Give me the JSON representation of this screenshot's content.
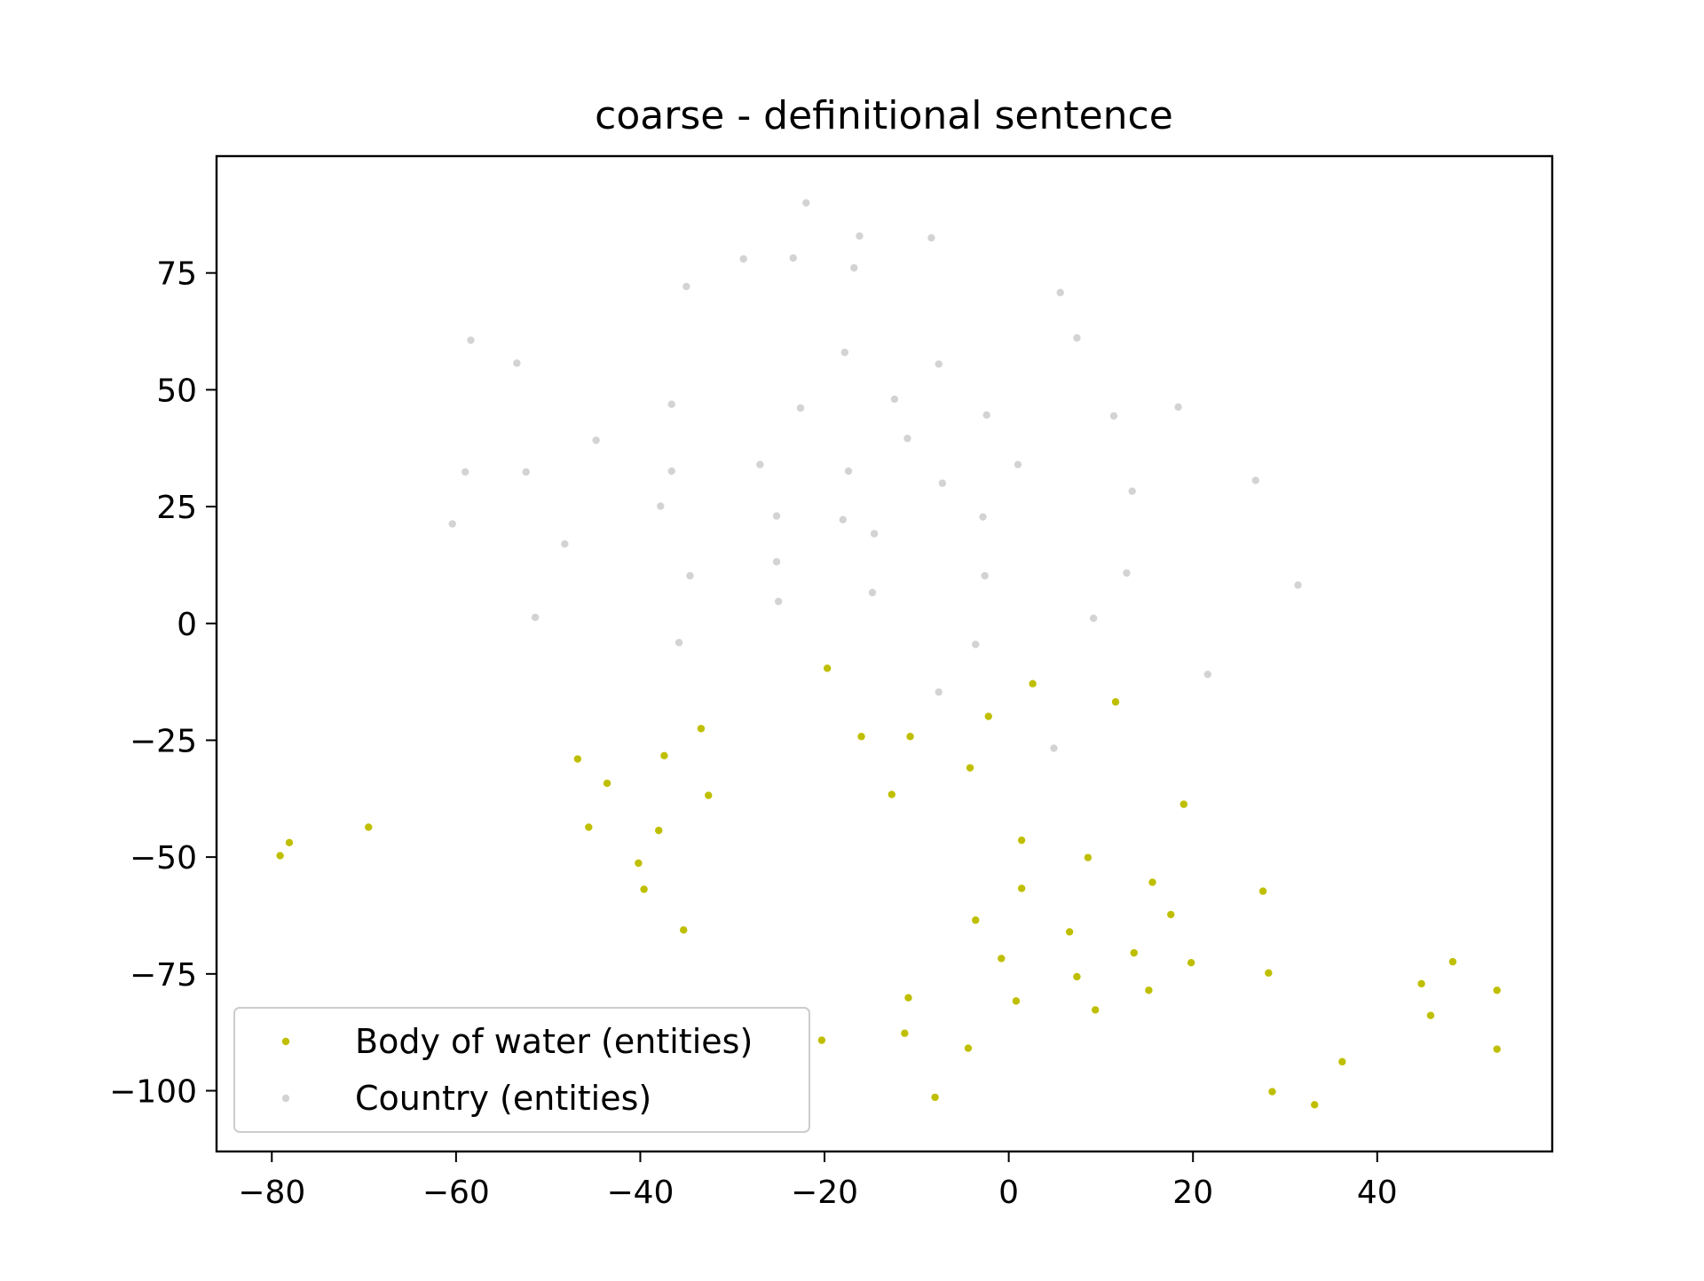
{
  "chart_data": {
    "type": "scatter",
    "title": "coarse - definitional sentence",
    "xlabel": "",
    "ylabel": "",
    "xlim": [
      -86,
      59
    ],
    "ylim": [
      -113,
      100
    ],
    "xticks": [
      -80,
      -60,
      -40,
      -20,
      0,
      20,
      40
    ],
    "yticks": [
      75,
      50,
      25,
      0,
      -25,
      -50,
      -75,
      -100
    ],
    "grid": false,
    "legend_position": "lower-left",
    "series": [
      {
        "name": "Body of water (entities)",
        "color": "#bfbf00",
        "points": [
          [
            -79.1,
            -49.7
          ],
          [
            -78.1,
            -46.9
          ],
          [
            -69.5,
            -43.6
          ],
          [
            -46.8,
            -29.0
          ],
          [
            -45.6,
            -43.6
          ],
          [
            -43.6,
            -34.2
          ],
          [
            -40.2,
            -51.3
          ],
          [
            -39.6,
            -56.9
          ],
          [
            -38.0,
            -44.3
          ],
          [
            -37.4,
            -28.3
          ],
          [
            -35.3,
            -65.6
          ],
          [
            -33.4,
            -22.5
          ],
          [
            -32.6,
            -36.8
          ],
          [
            -20.3,
            -89.2
          ],
          [
            -19.7,
            -9.6
          ],
          [
            -16.0,
            -24.2
          ],
          [
            -12.7,
            -36.6
          ],
          [
            -11.3,
            -87.7
          ],
          [
            -10.9,
            -80.1
          ],
          [
            -10.7,
            -24.2
          ],
          [
            -8.0,
            -101.4
          ],
          [
            -4.4,
            -90.9
          ],
          [
            -4.2,
            -30.9
          ],
          [
            -3.6,
            -63.5
          ],
          [
            -2.2,
            -19.9
          ],
          [
            -0.8,
            -71.7
          ],
          [
            0.8,
            -80.8
          ],
          [
            1.4,
            -46.4
          ],
          [
            1.4,
            -56.7
          ],
          [
            2.6,
            -12.9
          ],
          [
            6.6,
            -66.0
          ],
          [
            7.4,
            -75.6
          ],
          [
            8.6,
            -50.1
          ],
          [
            9.4,
            -82.7
          ],
          [
            11.6,
            -16.8
          ],
          [
            13.6,
            -70.5
          ],
          [
            15.2,
            -78.5
          ],
          [
            15.6,
            -55.4
          ],
          [
            17.6,
            -62.3
          ],
          [
            19.0,
            -38.7
          ],
          [
            19.8,
            -72.6
          ],
          [
            27.6,
            -57.3
          ],
          [
            28.2,
            -74.8
          ],
          [
            28.6,
            -100.2
          ],
          [
            33.2,
            -103.0
          ],
          [
            36.2,
            -93.8
          ],
          [
            44.8,
            -77.1
          ],
          [
            45.8,
            -83.9
          ],
          [
            48.2,
            -72.4
          ],
          [
            53.0,
            -78.5
          ],
          [
            53.0,
            -91.1
          ]
        ]
      },
      {
        "name": "Country (entities)",
        "color": "#d3d3d3",
        "points": [
          [
            -22.0,
            90.0
          ],
          [
            -16.2,
            82.9
          ],
          [
            -8.4,
            82.5
          ],
          [
            -28.8,
            78.0
          ],
          [
            -23.4,
            78.2
          ],
          [
            -16.8,
            76.1
          ],
          [
            -35.0,
            72.1
          ],
          [
            5.6,
            70.8
          ],
          [
            7.4,
            61.1
          ],
          [
            -58.4,
            60.6
          ],
          [
            -53.4,
            55.7
          ],
          [
            -17.8,
            58.0
          ],
          [
            -7.6,
            55.5
          ],
          [
            -12.4,
            48.0
          ],
          [
            -36.6,
            46.9
          ],
          [
            -22.6,
            46.1
          ],
          [
            -2.4,
            44.6
          ],
          [
            11.4,
            44.4
          ],
          [
            18.4,
            46.3
          ],
          [
            -44.8,
            39.2
          ],
          [
            -11.0,
            39.6
          ],
          [
            1.0,
            34.0
          ],
          [
            -27.0,
            34.0
          ],
          [
            -59.0,
            32.4
          ],
          [
            -52.4,
            32.4
          ],
          [
            -36.6,
            32.6
          ],
          [
            -17.4,
            32.6
          ],
          [
            -7.2,
            30.0
          ],
          [
            13.4,
            28.3
          ],
          [
            26.8,
            30.6
          ],
          [
            -37.8,
            25.1
          ],
          [
            -25.2,
            23.0
          ],
          [
            -18.0,
            22.2
          ],
          [
            -2.8,
            22.8
          ],
          [
            -60.4,
            21.3
          ],
          [
            -48.2,
            17.0
          ],
          [
            -14.6,
            19.2
          ],
          [
            -25.2,
            13.2
          ],
          [
            -34.6,
            10.2
          ],
          [
            -2.6,
            10.2
          ],
          [
            12.8,
            10.8
          ],
          [
            31.4,
            8.2
          ],
          [
            -25.0,
            4.7
          ],
          [
            -14.8,
            6.6
          ],
          [
            -51.4,
            1.3
          ],
          [
            9.2,
            1.1
          ],
          [
            -35.8,
            -4.1
          ],
          [
            -3.6,
            -4.5
          ],
          [
            21.6,
            -10.9
          ],
          [
            -7.6,
            -14.7
          ],
          [
            4.9,
            -26.7
          ]
        ]
      }
    ]
  }
}
